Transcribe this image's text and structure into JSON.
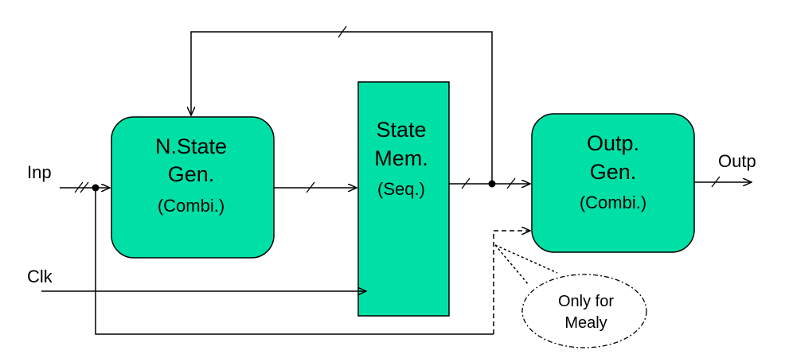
{
  "blocks": {
    "next_state": {
      "line1": "N.State",
      "line2": "Gen.",
      "line3": "(Combi.)"
    },
    "state_memory": {
      "line1": "State",
      "line2": "Mem.",
      "line3": "(Seq.)"
    },
    "output_gen": {
      "line1": "Outp.",
      "line2": "Gen.",
      "line3": "(Combi.)"
    }
  },
  "signals": {
    "input": "Inp",
    "clock": "Clk",
    "output": "Outp"
  },
  "callout": {
    "line1": "Only for",
    "line2": "Mealy"
  },
  "colors": {
    "block_fill": "#00e0a6",
    "line": "#000000"
  }
}
